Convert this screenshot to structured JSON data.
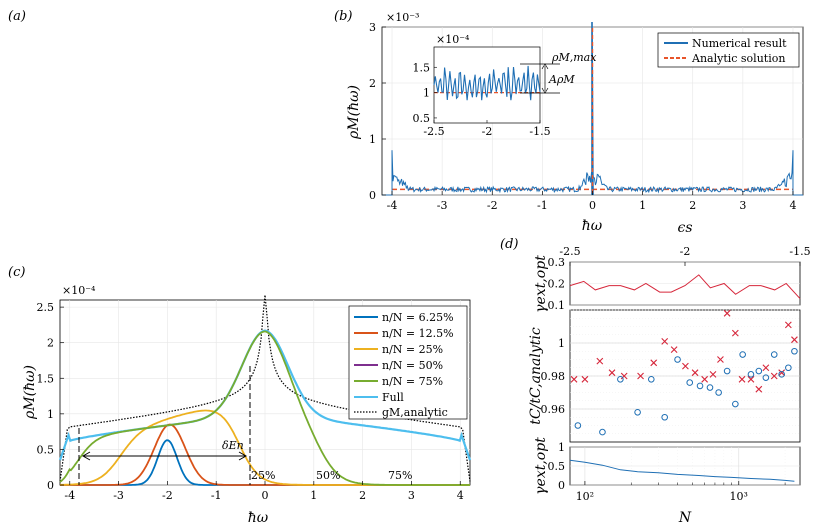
{
  "panel_labels": {
    "a": "(a)",
    "b": "(b)",
    "c": "(c)",
    "d": "(d)"
  },
  "chart_data": [
    {
      "id": "b",
      "type": "line",
      "ylabel": "ρM(ħω)",
      "xlabel": "ħω",
      "y_scale": "×10⁻³",
      "xlim": [
        -4.2,
        4.2
      ],
      "ylim": [
        0,
        3
      ],
      "xticks": [
        "-4",
        "-3",
        "-2",
        "-1",
        "0",
        "1",
        "2",
        "3",
        "4"
      ],
      "yticks": [
        "0",
        "1",
        "2",
        "3"
      ],
      "series": [
        {
          "name": "Numerical result",
          "color": "#1f6fb4",
          "style": "solid",
          "description": "noisy density approx 0.1×10⁻³ on [-4,4] with spikes 0.8×10⁻³ at ±4 and 3.0×10⁻³ at 0"
        },
        {
          "name": "Analytic solution",
          "color": "#e8542a",
          "style": "dashed",
          "flat_level": 0.1
        }
      ],
      "legend": [
        "Numerical result",
        "Analytic solution"
      ],
      "legend_position": "top-right",
      "inset": {
        "xlim": [
          -2.5,
          -1.5
        ],
        "ylim": [
          0.4,
          1.9
        ],
        "y_scale": "×10⁻⁴",
        "xticks": [
          "-2.5",
          "-2",
          "-1.5"
        ],
        "yticks": [
          "0.5",
          "1",
          "1.5"
        ],
        "analytic_level": 1.0,
        "labels": {
          "max": "ρM,max",
          "amp": "AρM"
        }
      }
    },
    {
      "id": "c",
      "type": "area",
      "ylabel": "ρM(ħω)",
      "xlabel": "ħω",
      "y_scale": "×10⁻⁴",
      "xlim": [
        -4.2,
        4.2
      ],
      "ylim": [
        0,
        2.6
      ],
      "xticks": [
        "-4",
        "-3",
        "-2",
        "-1",
        "0",
        "1",
        "2",
        "3",
        "4"
      ],
      "yticks": [
        "0",
        "0.5",
        "1",
        "1.5",
        "2",
        "2.5"
      ],
      "series": [
        {
          "name": "n/N = 6.25%",
          "color": "#0072bd",
          "peak_x": -2.0,
          "peak_y": 0.63
        },
        {
          "name": "n/N = 12.5%",
          "color": "#d95319",
          "peak_x": -1.95,
          "peak_y": 0.85
        },
        {
          "name": "n/N = 25%",
          "color": "#edb120",
          "peak_x": -1.45,
          "peak_y": 1.05
        },
        {
          "name": "n/N = 50%",
          "color": "#7e2f8e",
          "peak_x": -0.5,
          "peak_y": 1.55
        },
        {
          "name": "n/N = 75%",
          "color": "#77ac30",
          "peak_x": 0.0,
          "peak_y": 2.17
        },
        {
          "name": "Full",
          "color": "#4dbeee",
          "peak_x": 0.0,
          "peak_y": 2.17
        },
        {
          "name": "gM,analytic",
          "color": "#000000",
          "style": "dotted"
        }
      ],
      "legend_position": "top-right",
      "annotations": {
        "gap": "δEn",
        "p25": "25%",
        "p50": "50%",
        "p75": "75%"
      }
    },
    {
      "id": "d",
      "type": "scatter",
      "top_xlabel": "ϵs",
      "top_xticks": [
        "-2.5",
        "-2",
        "-1.5"
      ],
      "xlabel": "N",
      "xticks": [
        "10²",
        "10³"
      ],
      "subplots": [
        {
          "ylabel": "γext,opt",
          "ylim": [
            0.1,
            0.3
          ],
          "yticks": [
            "0.1",
            "0.2",
            "0.3"
          ],
          "series": [
            {
              "name": "γext,opt vs ϵs",
              "color": "#d6273b",
              "x": [
                -2.5,
                -2.44,
                -2.39,
                -2.33,
                -2.28,
                -2.22,
                -2.17,
                -2.11,
                -2.06,
                -2.0,
                -1.94,
                -1.89,
                -1.83,
                -1.78,
                -1.72,
                -1.67,
                -1.61,
                -1.56,
                -1.5
              ],
              "y": [
                0.19,
                0.21,
                0.17,
                0.19,
                0.19,
                0.17,
                0.2,
                0.16,
                0.16,
                0.19,
                0.24,
                0.18,
                0.2,
                0.15,
                0.19,
                0.19,
                0.17,
                0.2,
                0.13
              ]
            }
          ]
        },
        {
          "ylabel": "tC/tC,analytic",
          "ylim": [
            0.94,
            1.02
          ],
          "yticks": [
            "0.96",
            "0.98",
            "1"
          ],
          "series": [
            {
              "name": "crosses",
              "color": "#d6273b",
              "marker": "x",
              "N": [
                85,
                100,
                125,
                150,
                180,
                230,
                280,
                330,
                380,
                450,
                520,
                600,
                680,
                760,
                840,
                950,
                1050,
                1200,
                1350,
                1500,
                1700,
                1900,
                2100,
                2300
              ],
              "y": [
                0.978,
                0.978,
                0.989,
                0.982,
                0.98,
                0.98,
                0.988,
                1.001,
                0.996,
                0.986,
                0.982,
                0.978,
                0.981,
                0.99,
                1.018,
                1.006,
                0.978,
                0.978,
                0.972,
                0.985,
                0.98,
                0.982,
                1.011,
                1.002
              ]
            },
            {
              "name": "circles",
              "color": "#1f6fb4",
              "marker": "o",
              "N": [
                90,
                130,
                170,
                220,
                270,
                330,
                400,
                480,
                560,
                650,
                740,
                840,
                950,
                1060,
                1200,
                1350,
                1500,
                1700,
                1900,
                2100,
                2300
              ],
              "y": [
                0.95,
                0.946,
                0.978,
                0.958,
                0.978,
                0.955,
                0.99,
                0.976,
                0.974,
                0.973,
                0.97,
                0.983,
                0.963,
                0.993,
                0.981,
                0.983,
                0.979,
                0.993,
                0.981,
                0.985,
                0.995
              ]
            }
          ]
        },
        {
          "ylabel": "γext,opt",
          "ylim": [
            0,
            1
          ],
          "yticks": [
            "0",
            "0.5",
            "1"
          ],
          "series": [
            {
              "name": "γext,opt vs N",
              "color": "#1f6fb4",
              "N": [
                80,
                100,
                130,
                170,
                220,
                300,
                400,
                550,
                700,
                900,
                1200,
                1600,
                2000,
                2300
              ],
              "y": [
                0.65,
                0.6,
                0.52,
                0.4,
                0.35,
                0.32,
                0.28,
                0.25,
                0.22,
                0.2,
                0.17,
                0.15,
                0.12,
                0.1
              ]
            }
          ]
        }
      ]
    }
  ]
}
